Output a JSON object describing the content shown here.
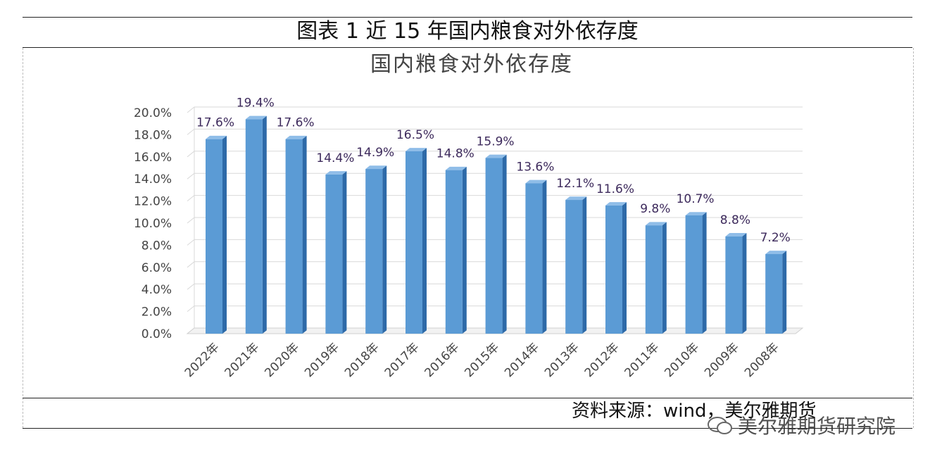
{
  "figure": {
    "caption": "图表 1 近 15 年国内粮食对外依存度",
    "source": "资料来源：wind，美尔雅期货",
    "watermark": "美尔雅期货研究院"
  },
  "chart_data": {
    "type": "bar",
    "title": "国内粮食对外依存度",
    "xlabel": "",
    "ylabel": "",
    "categories": [
      "2022年",
      "2021年",
      "2020年",
      "2019年",
      "2018年",
      "2017年",
      "2016年",
      "2015年",
      "2014年",
      "2013年",
      "2012年",
      "2011年",
      "2010年",
      "2009年",
      "2008年"
    ],
    "values": [
      17.6,
      19.4,
      17.6,
      14.4,
      14.9,
      16.5,
      14.8,
      15.9,
      13.6,
      12.1,
      11.6,
      9.8,
      10.7,
      8.8,
      7.2
    ],
    "value_labels": [
      "17.6%",
      "19.4%",
      "17.6%",
      "14.4%",
      "14.9%",
      "16.5%",
      "14.8%",
      "15.9%",
      "13.6%",
      "12.1%",
      "11.6%",
      "9.8%",
      "10.7%",
      "8.8%",
      "7.2%"
    ],
    "yticks": [
      "0.0%",
      "2.0%",
      "4.0%",
      "6.0%",
      "8.0%",
      "10.0%",
      "12.0%",
      "14.0%",
      "16.0%",
      "18.0%",
      "20.0%"
    ],
    "ylim": [
      0,
      20
    ],
    "grid": true,
    "legend": "none",
    "colors": {
      "bar": "#5b9bd5",
      "bar_side": "#2e6aa8",
      "bar_top": "#8fbde8",
      "label": "#3d2a5c",
      "axis_text": "#444444"
    }
  }
}
